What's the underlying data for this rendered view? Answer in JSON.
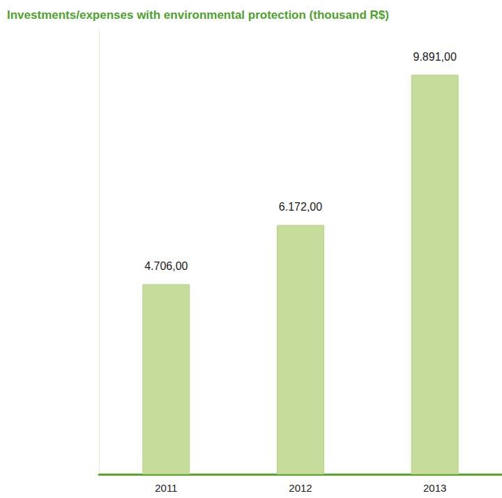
{
  "chart_data": {
    "type": "bar",
    "title": "Investments/expenses with environmental protection (thousand R$)",
    "categories": [
      "2011",
      "2012",
      "2013"
    ],
    "values": [
      4706,
      6172,
      9891
    ],
    "value_labels": [
      "4.706,00",
      "6.172,00",
      "9.891,00"
    ],
    "color": "#c5dc9a",
    "ylim": [
      0,
      11000
    ],
    "yticks": [],
    "grid": false,
    "data_labels": true,
    "tick_labels": "x"
  }
}
